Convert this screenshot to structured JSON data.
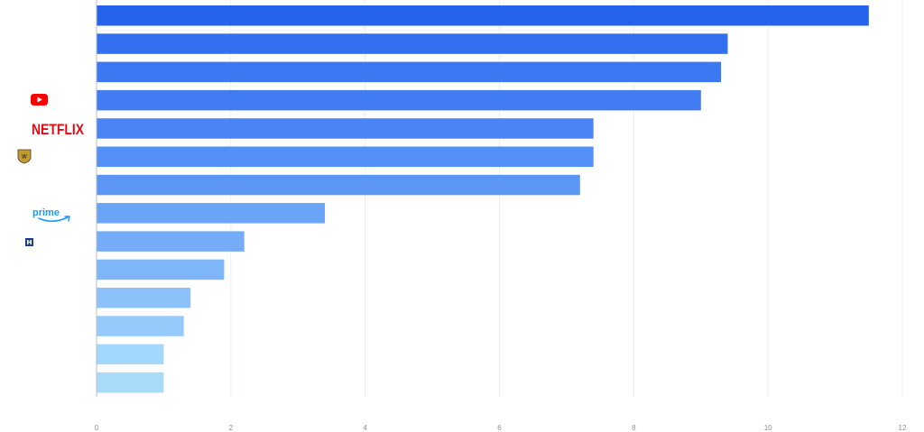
{
  "chart_data": {
    "type": "bar",
    "orientation": "horizontal",
    "title": "",
    "xlabel": "",
    "ylabel": "",
    "xlim": [
      0,
      12
    ],
    "x_ticks": [
      "0",
      "2",
      "4",
      "6",
      "8",
      "10",
      "12"
    ],
    "grid": "vertical",
    "legend": "none",
    "values": [
      11.5,
      9.4,
      9.3,
      9.0,
      7.4,
      7.4,
      7.2,
      3.4,
      2.2,
      1.9,
      1.4,
      1.3,
      1.0,
      1.0
    ],
    "bar_colors": [
      "#2563eb",
      "#3270f0",
      "#3b78f1",
      "#417cf2",
      "#4a86f3",
      "#5290f5",
      "#5b96f5",
      "#6aa4f7",
      "#74acf7",
      "#7fb6f8",
      "#8cc2f9",
      "#96cafa",
      "#a3d6fb",
      "#a8daf9"
    ],
    "category_logos": [
      "",
      "",
      "",
      "youtube-logo",
      "netflix-logo",
      "warner-bros-logo",
      "",
      "amazon-prime-logo",
      "disney-logo",
      "",
      "",
      "",
      "",
      ""
    ]
  },
  "logos": {
    "netflix_text": "NETFLIX",
    "prime_text": "prime",
    "colors": {
      "youtube": "#ff0000",
      "netflix": "#e50914",
      "prime": "#1a98ff",
      "warner": "#c49a2c",
      "disney": "#1c3f94"
    }
  }
}
